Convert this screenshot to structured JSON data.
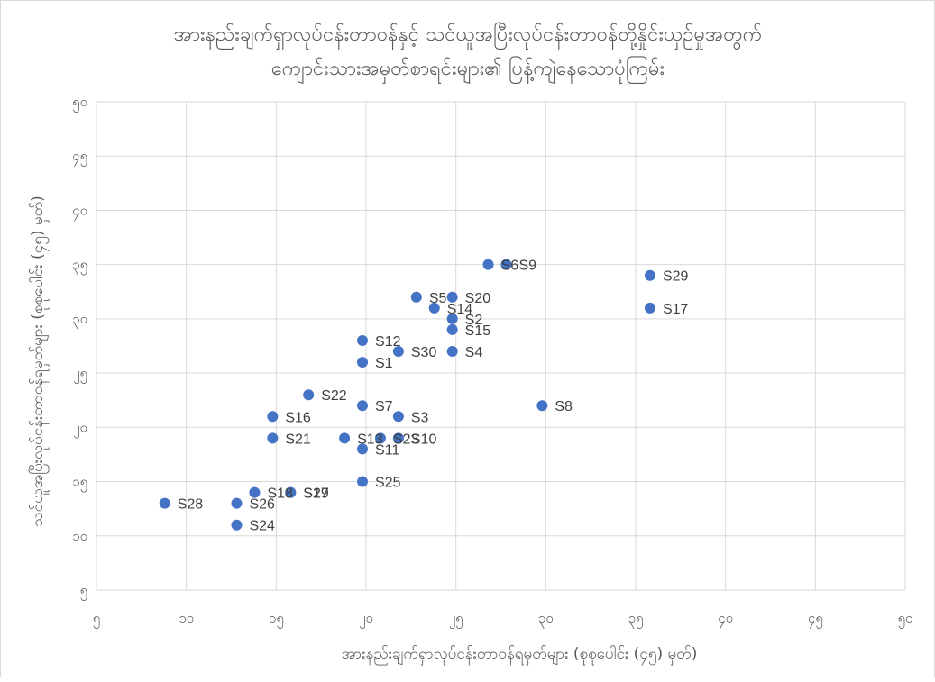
{
  "chart_data": {
    "type": "scatter",
    "title_line1": "အားနည်းချက်ရှာလုပ်ငန်းတာဝန်နှင့် သင်ယူအပြီးလုပ်ငန်းတာဝန်တို့နှိုင်းယှဉ်မှုအတွက်",
    "title_line2": "ကျောင်းသားအမှတ်စာရင်းများ၏ ပြန့်ကျဲနေသောပုံကြမ်း",
    "xlabel": "အားနည်းချက်ရှာလုပ်ငန်းတာဝန်ရမှတ်များ (စုစုပေါင်း (၄၅) မှတ်)",
    "ylabel": "သင်ယူအပြီးလုပ်ငန်းတာဝန်ရမှတ်များ (စုစုပေါင်း (၄၅) မှတ်)",
    "xlim": [
      5,
      50
    ],
    "ylim": [
      5,
      50
    ],
    "x_ticks": [
      {
        "value": 5,
        "label": "၅"
      },
      {
        "value": 10,
        "label": "၁၀"
      },
      {
        "value": 15,
        "label": "၁၅"
      },
      {
        "value": 20,
        "label": "၂၀"
      },
      {
        "value": 25,
        "label": "၂၅"
      },
      {
        "value": 30,
        "label": "၃၀"
      },
      {
        "value": 35,
        "label": "၃၅"
      },
      {
        "value": 40,
        "label": "၄၀"
      },
      {
        "value": 45,
        "label": "၄၅"
      },
      {
        "value": 50,
        "label": "၅၀"
      }
    ],
    "y_ticks": [
      {
        "value": 5,
        "label": "၅"
      },
      {
        "value": 10,
        "label": "၁၀"
      },
      {
        "value": 15,
        "label": "၁၅"
      },
      {
        "value": 20,
        "label": "၂၀"
      },
      {
        "value": 25,
        "label": "၂၅"
      },
      {
        "value": 30,
        "label": "၃၀"
      },
      {
        "value": 35,
        "label": "၃၅"
      },
      {
        "value": 40,
        "label": "၄၀"
      },
      {
        "value": 45,
        "label": "၄၅"
      },
      {
        "value": 50,
        "label": "၅၀"
      }
    ],
    "grid": true,
    "marker_color": "#4472c4",
    "points": [
      {
        "label": "S28",
        "x": 8.8,
        "y": 13
      },
      {
        "label": "S26",
        "x": 12.8,
        "y": 13
      },
      {
        "label": "S24",
        "x": 12.8,
        "y": 11
      },
      {
        "label": "S18",
        "x": 13.8,
        "y": 14
      },
      {
        "label": "S27",
        "x": 15.8,
        "y": 14
      },
      {
        "label": "S19",
        "x": 15.8,
        "y": 14
      },
      {
        "label": "S16",
        "x": 14.8,
        "y": 21
      },
      {
        "label": "S21",
        "x": 14.8,
        "y": 19
      },
      {
        "label": "S22",
        "x": 16.8,
        "y": 23
      },
      {
        "label": "S13",
        "x": 18.8,
        "y": 19
      },
      {
        "label": "S12",
        "x": 19.8,
        "y": 28
      },
      {
        "label": "S1",
        "x": 19.8,
        "y": 26
      },
      {
        "label": "S7",
        "x": 19.8,
        "y": 22
      },
      {
        "label": "S11",
        "x": 19.8,
        "y": 18
      },
      {
        "label": "S25",
        "x": 19.8,
        "y": 15
      },
      {
        "label": "S23",
        "x": 20.8,
        "y": 19
      },
      {
        "label": "S10",
        "x": 21.8,
        "y": 19
      },
      {
        "label": "S30",
        "x": 21.8,
        "y": 27
      },
      {
        "label": "S3",
        "x": 21.8,
        "y": 21
      },
      {
        "label": "S5",
        "x": 22.8,
        "y": 32
      },
      {
        "label": "S14",
        "x": 23.8,
        "y": 31
      },
      {
        "label": "S20",
        "x": 24.8,
        "y": 32
      },
      {
        "label": "S2",
        "x": 24.8,
        "y": 30
      },
      {
        "label": "S15",
        "x": 24.8,
        "y": 29
      },
      {
        "label": "S4",
        "x": 24.8,
        "y": 27
      },
      {
        "label": "S6",
        "x": 26.8,
        "y": 35
      },
      {
        "label": "S9",
        "x": 27.8,
        "y": 35
      },
      {
        "label": "S8",
        "x": 29.8,
        "y": 22
      },
      {
        "label": "S29",
        "x": 35.8,
        "y": 34
      },
      {
        "label": "S17",
        "x": 35.8,
        "y": 31
      }
    ]
  }
}
